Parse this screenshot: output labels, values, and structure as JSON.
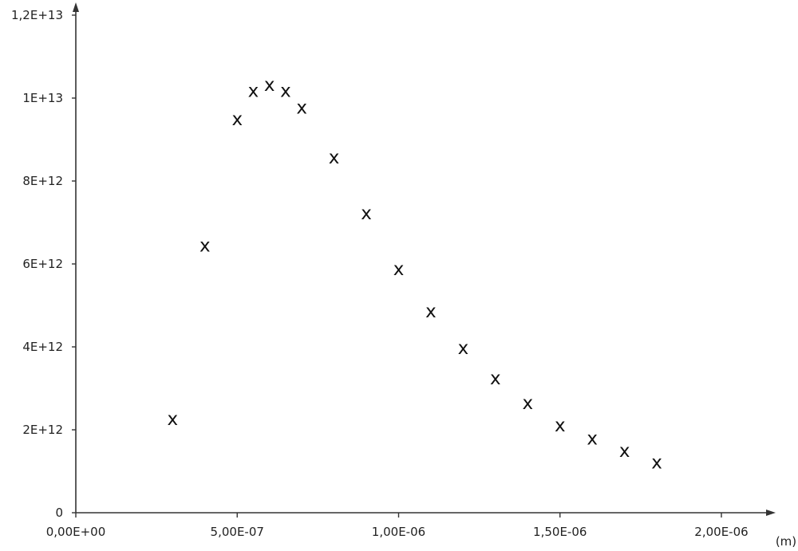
{
  "chart_data": {
    "type": "scatter",
    "marker": "x",
    "xlabel": "(m)",
    "ylabel": "",
    "xlim": [
      0,
      2.1e-06
    ],
    "ylim": [
      0,
      12000000000000.0
    ],
    "x_ticks": [
      {
        "value": 0,
        "label": "0,00E+00"
      },
      {
        "value": 5e-07,
        "label": "5,00E-07"
      },
      {
        "value": 1e-06,
        "label": "1,00E-06"
      },
      {
        "value": 1.5e-06,
        "label": "1,50E-06"
      },
      {
        "value": 2e-06,
        "label": "2,00E-06"
      }
    ],
    "y_ticks": [
      {
        "value": 0,
        "label": "0"
      },
      {
        "value": 2000000000000.0,
        "label": "2E+12"
      },
      {
        "value": 4000000000000.0,
        "label": "4E+12"
      },
      {
        "value": 6000000000000.0,
        "label": "6E+12"
      },
      {
        "value": 8000000000000.0,
        "label": "8E+12"
      },
      {
        "value": 10000000000000.0,
        "label": "1E+13"
      },
      {
        "value": 12000000000000.0,
        "label": "1,2E+13"
      }
    ],
    "points": [
      {
        "x": 3e-07,
        "y": 2270000000000.0
      },
      {
        "x": 4e-07,
        "y": 6450000000000.0
      },
      {
        "x": 5e-07,
        "y": 9500000000000.0
      },
      {
        "x": 5.5e-07,
        "y": 10180000000000.0
      },
      {
        "x": 6e-07,
        "y": 10330000000000.0
      },
      {
        "x": 6.5e-07,
        "y": 10180000000000.0
      },
      {
        "x": 7e-07,
        "y": 9780000000000.0
      },
      {
        "x": 8e-07,
        "y": 8580000000000.0
      },
      {
        "x": 9e-07,
        "y": 7230000000000.0
      },
      {
        "x": 1e-06,
        "y": 5880000000000.0
      },
      {
        "x": 1.1e-06,
        "y": 4870000000000.0
      },
      {
        "x": 1.2e-06,
        "y": 3980000000000.0
      },
      {
        "x": 1.3e-06,
        "y": 3250000000000.0
      },
      {
        "x": 1.4e-06,
        "y": 2650000000000.0
      },
      {
        "x": 1.5e-06,
        "y": 2120000000000.0
      },
      {
        "x": 1.6e-06,
        "y": 1800000000000.0
      },
      {
        "x": 1.7e-06,
        "y": 1500000000000.0
      },
      {
        "x": 1.8e-06,
        "y": 1220000000000.0
      }
    ],
    "grid": false,
    "legend": "none"
  }
}
